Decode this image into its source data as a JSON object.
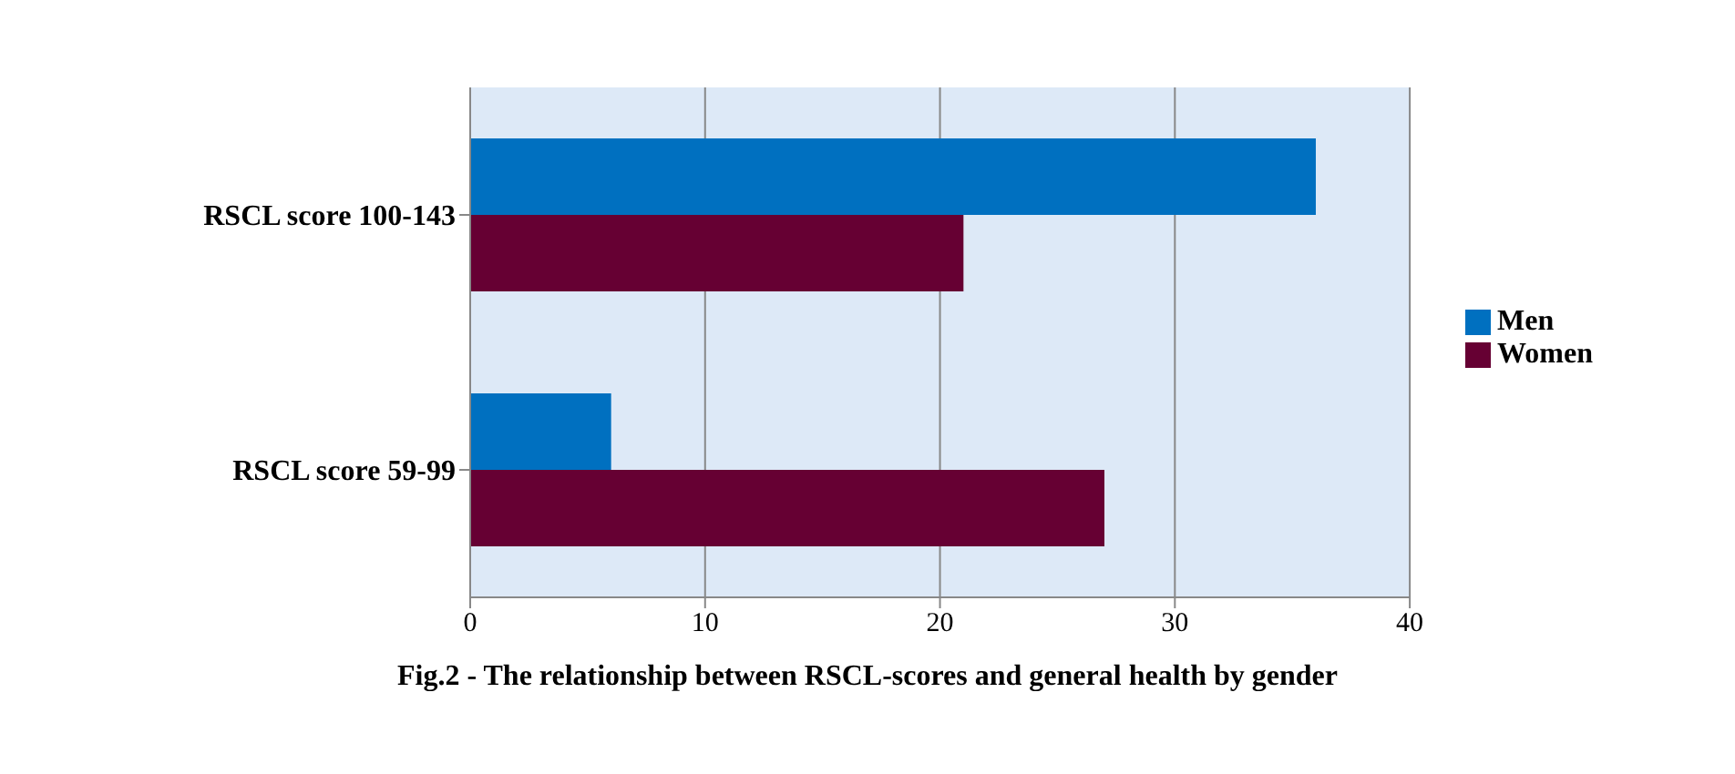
{
  "chart_data": {
    "type": "bar",
    "orientation": "horizontal",
    "title": "Fig.2 - The relationship between RSCL-scores and general health by gender",
    "categories": [
      "RSCL score 100-143",
      "RSCL score 59-99"
    ],
    "series": [
      {
        "name": "Men",
        "color": "#0070c0",
        "values": [
          36,
          6
        ]
      },
      {
        "name": "Women",
        "color": "#660033",
        "values": [
          21,
          27
        ]
      }
    ],
    "xlim": [
      0,
      40
    ],
    "xticks": [
      0,
      10,
      20,
      30,
      40
    ],
    "grid": "x",
    "legend": "right"
  }
}
